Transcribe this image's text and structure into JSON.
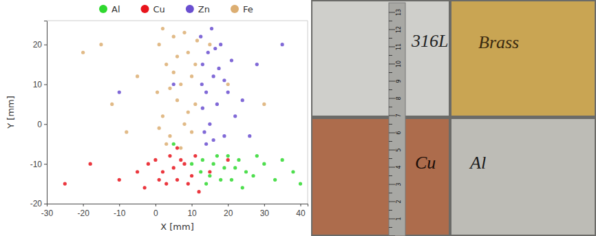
{
  "chart_data": {
    "type": "scatter",
    "xlabel": "X [mm]",
    "ylabel": "Y [mm]",
    "xlim": [
      -30,
      42
    ],
    "ylim": [
      -20,
      26
    ],
    "xticks": [
      -30,
      -20,
      -10,
      0,
      10,
      20,
      30,
      40
    ],
    "yticks": [
      -20,
      -10,
      0,
      10,
      20
    ],
    "grid": false,
    "legend": "top",
    "marker": "circle",
    "series": [
      {
        "name": "Al",
        "color": "#2fd82f",
        "x": [
          13,
          15,
          17,
          19,
          21,
          23,
          25,
          14,
          16,
          18,
          20,
          22,
          27,
          30,
          33,
          38,
          12.5,
          10,
          28,
          35,
          5,
          24,
          40
        ],
        "values": [
          -9,
          -13,
          -8,
          -11,
          -14,
          -9,
          -12,
          -15,
          -10,
          -14,
          -8,
          -11,
          -13,
          -10,
          -14,
          -12,
          -12,
          -10,
          -8,
          -9,
          -5,
          -16,
          -15
        ]
      },
      {
        "name": "Cu",
        "color": "#e8141c",
        "x": [
          0,
          2,
          4,
          6,
          8,
          10,
          11,
          3,
          5,
          7,
          9,
          1,
          -2,
          -5,
          -10,
          -18,
          -25,
          15,
          20,
          6,
          -3,
          12
        ],
        "values": [
          -9,
          -12,
          -8,
          -14,
          -10,
          -13,
          -8,
          -15,
          -11,
          -9,
          -15,
          -14,
          -10,
          -12,
          -14,
          -10,
          -15,
          -12,
          -9,
          -6,
          -16,
          -17
        ]
      },
      {
        "name": "Zn",
        "color": "#6a4fd0",
        "x": [
          12.5,
          13,
          14,
          15,
          16,
          13.5,
          14.5,
          16,
          17,
          18,
          19,
          20,
          13,
          15.5,
          17.5,
          21,
          22,
          14,
          12.8,
          16.5,
          19,
          24,
          28,
          26,
          5,
          -10,
          35
        ],
        "values": [
          22,
          15,
          8,
          0,
          -4,
          -2,
          18,
          12,
          5,
          20,
          -3,
          8,
          4,
          24,
          14,
          16,
          2,
          -5,
          10,
          19,
          11,
          6,
          15,
          -3,
          10,
          8,
          20
        ]
      },
      {
        "name": "Fe",
        "color": "#dcae72",
        "x": [
          1,
          3,
          5,
          7,
          9,
          11,
          2,
          4,
          6,
          8,
          10,
          11.5,
          0.5,
          3,
          7,
          9,
          5,
          2,
          8,
          10,
          6,
          4,
          1,
          11,
          -5,
          -12,
          -20,
          20,
          -8,
          15,
          30,
          -15
        ],
        "values": [
          20,
          15,
          22,
          10,
          18,
          5,
          2,
          -3,
          6,
          0,
          12,
          21,
          8,
          -5,
          -6,
          3,
          13,
          24,
          23,
          -2,
          17,
          9,
          -1,
          15,
          12,
          5,
          18,
          10,
          -2,
          20,
          5,
          20
        ]
      }
    ]
  },
  "photo": {
    "labels": [
      "316L",
      "Brass",
      "Cu",
      "Al"
    ],
    "ruler_ticks": [
      1,
      2,
      3,
      4,
      5,
      6,
      7,
      8,
      9,
      10,
      11,
      12,
      13
    ]
  }
}
